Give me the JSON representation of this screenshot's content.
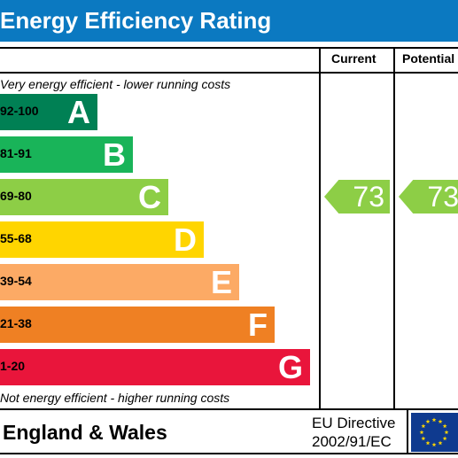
{
  "header": {
    "title": "Energy Efficiency Rating"
  },
  "columns": {
    "current": "Current",
    "potential": "Potential"
  },
  "notes": {
    "top": "Very energy efficient - lower running costs",
    "bottom": "Not energy efficient - higher running costs"
  },
  "chart_data": {
    "type": "bar",
    "title": "Energy Efficiency Rating",
    "bands": [
      {
        "range": "92-100",
        "letter": "A",
        "color": "#008054"
      },
      {
        "range": "81-91",
        "letter": "B",
        "color": "#19b459"
      },
      {
        "range": "69-80",
        "letter": "C",
        "color": "#8dce46"
      },
      {
        "range": "55-68",
        "letter": "D",
        "color": "#ffd500"
      },
      {
        "range": "39-54",
        "letter": "E",
        "color": "#fcaa65"
      },
      {
        "range": "21-38",
        "letter": "F",
        "color": "#ef8023"
      },
      {
        "range": "1-20",
        "letter": "G",
        "color": "#e9153b"
      }
    ],
    "current": {
      "value": 73,
      "band": "C",
      "color": "#8dce46"
    },
    "potential": {
      "value": 73,
      "band": "C",
      "color": "#8dce46"
    }
  },
  "footer": {
    "country": "England & Wales",
    "directive_line1": "EU Directive",
    "directive_line2": "2002/91/EC",
    "flag_icon": "eu-flag-icon"
  }
}
